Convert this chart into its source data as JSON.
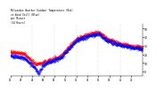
{
  "title": "Milwaukee Weather Outdoor Temperature (Red)\nvs Wind Chill (Blue)\nper Minute\n(24 Hours)",
  "background_color": "#ffffff",
  "plot_bg_color": "#ffffff",
  "temp_color": "#ff0000",
  "windchill_color": "#0000ff",
  "ylim": [
    -5,
    55
  ],
  "ytick_labels": [
    "0",
    "10",
    "20",
    "30",
    "40",
    "50"
  ],
  "ytick_vals": [
    0,
    10,
    20,
    30,
    40,
    50
  ],
  "n_points": 1440,
  "x_gridlines": [
    240,
    480,
    720,
    960,
    1200
  ],
  "temp_knots_t": [
    0,
    150,
    280,
    400,
    550,
    720,
    850,
    960,
    1050,
    1150,
    1300,
    1440
  ],
  "temp_knots_v": [
    23,
    21,
    8,
    12,
    18,
    38,
    43,
    46,
    38,
    34,
    30,
    28
  ],
  "wc_knots_t": [
    0,
    150,
    270,
    310,
    350,
    400,
    550,
    720,
    850,
    960,
    1050,
    1150,
    1300,
    1440
  ],
  "wc_knots_v": [
    18,
    16,
    4,
    -3,
    7,
    10,
    16,
    36,
    41,
    44,
    36,
    32,
    28,
    26
  ]
}
